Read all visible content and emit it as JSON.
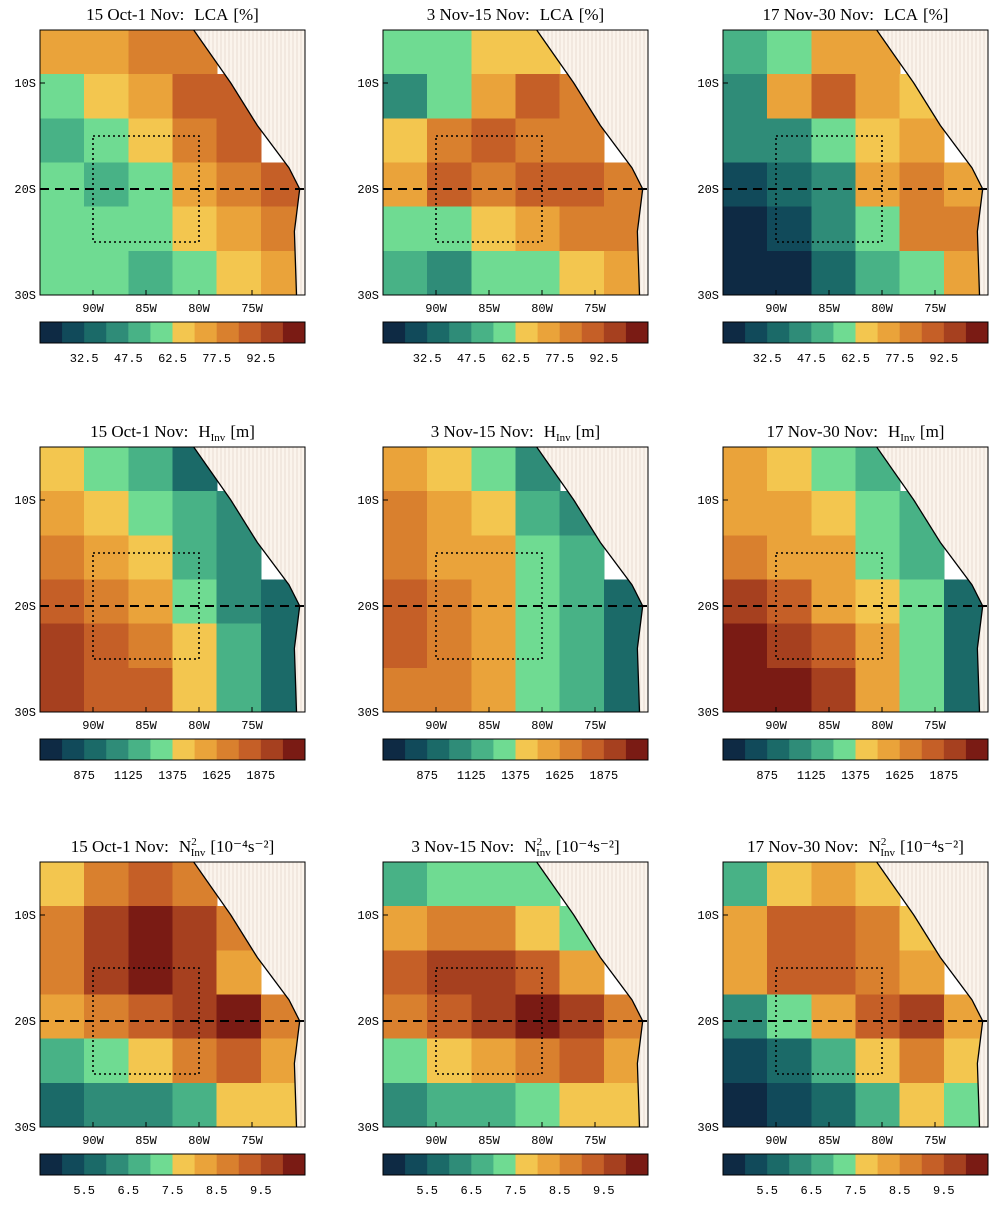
{
  "xlim": [
    -95,
    -70
  ],
  "ylim": [
    -30,
    -5
  ],
  "xticks": [
    {
      "value": -90,
      "label": "90W"
    },
    {
      "value": -85,
      "label": "85W"
    },
    {
      "value": -80,
      "label": "80W"
    },
    {
      "value": -75,
      "label": "75W"
    }
  ],
  "yticks": [
    {
      "value": -10,
      "label": "10S"
    },
    {
      "value": -20,
      "label": "20S"
    },
    {
      "value": -30,
      "label": "30S"
    }
  ],
  "dashed_lat": -20,
  "box": {
    "lon": [
      -90,
      -80
    ],
    "lat": [
      -25,
      -15
    ]
  },
  "colors": [
    "#0e2a44",
    "#114a5a",
    "#1b6a68",
    "#2f8c78",
    "#48b286",
    "#6fdb92",
    "#f3c64f",
    "#eaa33a",
    "#d9802e",
    "#c55f27",
    "#a6401f",
    "#7a1b14"
  ],
  "rows": [
    {
      "variable": {
        "symbol": "LCA",
        "unit": "[%]"
      },
      "colorbar": {
        "lim": [
          17.5,
          107.5
        ],
        "ticks": [
          32.5,
          47.5,
          62.5,
          77.5,
          92.5
        ]
      },
      "panels": [
        {
          "period": "15 Oct-1 Nov:",
          "field": [
            [
              70,
              75,
              80,
              80,
              null,
              null
            ],
            [
              55,
              65,
              75,
              85,
              85,
              null
            ],
            [
              50,
              55,
              65,
              80,
              85,
              null
            ],
            [
              55,
              50,
              60,
              70,
              80,
              85
            ],
            [
              60,
              55,
              55,
              65,
              75,
              80
            ],
            [
              55,
              55,
              50,
              55,
              65,
              70
            ]
          ]
        },
        {
          "period": "3 Nov-15 Nov:",
          "field": [
            [
              55,
              60,
              65,
              65,
              null,
              null
            ],
            [
              45,
              55,
              75,
              85,
              80,
              null
            ],
            [
              65,
              80,
              85,
              80,
              80,
              null
            ],
            [
              70,
              85,
              80,
              85,
              85,
              80
            ],
            [
              55,
              60,
              65,
              70,
              80,
              80
            ],
            [
              50,
              45,
              55,
              60,
              65,
              70
            ]
          ]
        },
        {
          "period": "17 Nov-30 Nov:",
          "field": [
            [
              50,
              60,
              75,
              70,
              null,
              null
            ],
            [
              45,
              70,
              85,
              75,
              65,
              null
            ],
            [
              40,
              45,
              55,
              65,
              75,
              null
            ],
            [
              30,
              35,
              40,
              75,
              80,
              75
            ],
            [
              20,
              30,
              45,
              55,
              80,
              80
            ],
            [
              20,
              20,
              35,
              50,
              60,
              70
            ]
          ]
        }
      ]
    },
    {
      "variable": {
        "symbol": "H",
        "subscript": "Inv",
        "unit": "[m]"
      },
      "colorbar": {
        "lim": [
          625,
          2125
        ],
        "ticks": [
          875,
          1125,
          1375,
          1625,
          1875
        ]
      },
      "panels": [
        {
          "period": "15 Oct-1 Nov:",
          "field": [
            [
              1400,
              1250,
              1150,
              950,
              null,
              null
            ],
            [
              1550,
              1400,
              1250,
              1150,
              1050,
              null
            ],
            [
              1700,
              1550,
              1400,
              1200,
              1100,
              null
            ],
            [
              1850,
              1700,
              1550,
              1300,
              1100,
              950
            ],
            [
              1900,
              1800,
              1650,
              1400,
              1150,
              900
            ],
            [
              1950,
              1850,
              1750,
              1450,
              1150,
              900
            ]
          ]
        },
        {
          "period": "3 Nov-15 Nov:",
          "field": [
            [
              1500,
              1450,
              1300,
              1050,
              null,
              null
            ],
            [
              1650,
              1550,
              1400,
              1200,
              1100,
              null
            ],
            [
              1700,
              1600,
              1550,
              1250,
              1150,
              null
            ],
            [
              1750,
              1650,
              1550,
              1300,
              1200,
              950
            ],
            [
              1750,
              1700,
              1600,
              1350,
              1200,
              900
            ],
            [
              1700,
              1700,
              1600,
              1350,
              1150,
              900
            ]
          ]
        },
        {
          "period": "17 Nov-30 Nov:",
          "field": [
            [
              1500,
              1450,
              1300,
              1150,
              null,
              null
            ],
            [
              1550,
              1550,
              1450,
              1300,
              1200,
              null
            ],
            [
              1650,
              1600,
              1500,
              1350,
              1200,
              null
            ],
            [
              1900,
              1750,
              1600,
              1450,
              1250,
              950
            ],
            [
              2050,
              1950,
              1750,
              1550,
              1250,
              900
            ],
            [
              2100,
              2050,
              1900,
              1600,
              1250,
              900
            ]
          ]
        }
      ]
    },
    {
      "variable": {
        "symbol": "N",
        "superscript": "2",
        "subscript": "Inv",
        "unit": "[10⁻⁴s⁻²]"
      },
      "colorbar": {
        "lim": [
          4.5,
          10.5
        ],
        "ticks": [
          5.5,
          6.5,
          7.5,
          8.5,
          9.5
        ]
      },
      "panels": [
        {
          "period": "15 Oct-1 Nov:",
          "field": [
            [
              7.5,
              8.5,
              9.0,
              8.5,
              null,
              null
            ],
            [
              8.5,
              9.5,
              10.0,
              9.5,
              8.5,
              null
            ],
            [
              8.5,
              9.5,
              10.0,
              9.5,
              8.0,
              null
            ],
            [
              8.0,
              8.5,
              9.0,
              9.5,
              10.0,
              8.5
            ],
            [
              6.5,
              7.0,
              7.5,
              8.5,
              9.0,
              8.0
            ],
            [
              5.5,
              6.0,
              6.0,
              6.5,
              7.5,
              7.5
            ]
          ]
        },
        {
          "period": "3 Nov-15 Nov:",
          "field": [
            [
              6.5,
              7.0,
              7.0,
              7.0,
              null,
              null
            ],
            [
              8.0,
              8.5,
              8.5,
              7.5,
              7.0,
              null
            ],
            [
              9.0,
              9.5,
              9.5,
              9.0,
              8.0,
              null
            ],
            [
              8.5,
              9.0,
              9.5,
              10.0,
              9.5,
              8.5
            ],
            [
              7.0,
              7.5,
              8.0,
              8.5,
              9.0,
              8.0
            ],
            [
              6.0,
              6.5,
              6.5,
              7.0,
              7.5,
              7.5
            ]
          ]
        },
        {
          "period": "17 Nov-30 Nov:",
          "field": [
            [
              6.5,
              7.5,
              8.0,
              7.5,
              null,
              null
            ],
            [
              8.0,
              9.0,
              9.0,
              8.5,
              7.5,
              null
            ],
            [
              8.0,
              9.0,
              9.0,
              8.5,
              8.0,
              null
            ],
            [
              6.0,
              7.0,
              8.0,
              9.0,
              9.5,
              8.0
            ],
            [
              5.0,
              5.5,
              6.5,
              7.5,
              8.5,
              7.5
            ],
            [
              4.8,
              5.0,
              5.5,
              6.5,
              7.5,
              7.0
            ]
          ]
        }
      ]
    }
  ]
}
